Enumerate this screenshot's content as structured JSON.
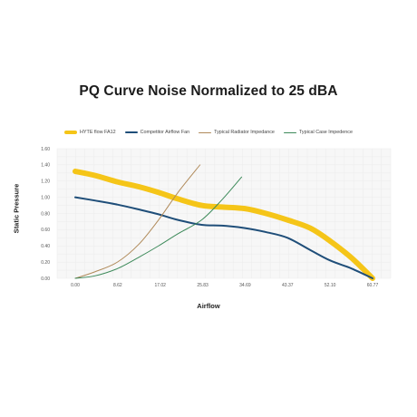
{
  "chart_data": {
    "type": "line",
    "title": "PQ Curve Noise Normalized to 25 dBA",
    "xlabel": "Airflow",
    "ylabel": "Static Pressure",
    "x_ticks": [
      "0.00",
      "8.62",
      "17.02",
      "25.83",
      "34.69",
      "43.37",
      "52.10",
      "60.77"
    ],
    "y_ticks": [
      "0.00",
      "0.20",
      "0.40",
      "0.60",
      "0.80",
      "1.00",
      "1.20",
      "1.40",
      "1.60"
    ],
    "xlim": [
      0,
      60.77
    ],
    "ylim": [
      0,
      1.6
    ],
    "grid": true,
    "legend_position": "top",
    "series": [
      {
        "name": "HYTE flow FA12",
        "color": "#f5c518",
        "points": [
          [
            0,
            1.32
          ],
          [
            4,
            1.27
          ],
          [
            8.62,
            1.19
          ],
          [
            13,
            1.13
          ],
          [
            17.02,
            1.06
          ],
          [
            21,
            0.98
          ],
          [
            25.83,
            0.9
          ],
          [
            30,
            0.88
          ],
          [
            34.69,
            0.86
          ],
          [
            39,
            0.8
          ],
          [
            43.37,
            0.72
          ],
          [
            48,
            0.62
          ],
          [
            52.1,
            0.46
          ],
          [
            56.5,
            0.25
          ],
          [
            60.77,
            0.0
          ]
        ]
      },
      {
        "name": "Competitor Airflow Fan",
        "color": "#1f4e79",
        "points": [
          [
            0,
            1.0
          ],
          [
            4,
            0.96
          ],
          [
            8.62,
            0.91
          ],
          [
            13,
            0.85
          ],
          [
            17.02,
            0.79
          ],
          [
            21,
            0.72
          ],
          [
            25.83,
            0.66
          ],
          [
            30,
            0.65
          ],
          [
            34.69,
            0.62
          ],
          [
            39,
            0.57
          ],
          [
            43.37,
            0.5
          ],
          [
            48,
            0.35
          ],
          [
            52.1,
            0.22
          ],
          [
            56.5,
            0.12
          ],
          [
            60.77,
            0.0
          ]
        ]
      },
      {
        "name": "Typical Radiator Impedance",
        "color": "#b08a5a",
        "points": [
          [
            0,
            0.0
          ],
          [
            4,
            0.08
          ],
          [
            8.62,
            0.2
          ],
          [
            13,
            0.42
          ],
          [
            17.02,
            0.72
          ],
          [
            21,
            1.06
          ],
          [
            25.5,
            1.4
          ]
        ]
      },
      {
        "name": "Typical Case Impedence",
        "color": "#3d8a5a",
        "points": [
          [
            0,
            0.0
          ],
          [
            4,
            0.03
          ],
          [
            8.62,
            0.12
          ],
          [
            13,
            0.26
          ],
          [
            17.02,
            0.4
          ],
          [
            21,
            0.55
          ],
          [
            25.83,
            0.72
          ],
          [
            30,
            0.97
          ],
          [
            34.0,
            1.25
          ]
        ]
      }
    ]
  }
}
